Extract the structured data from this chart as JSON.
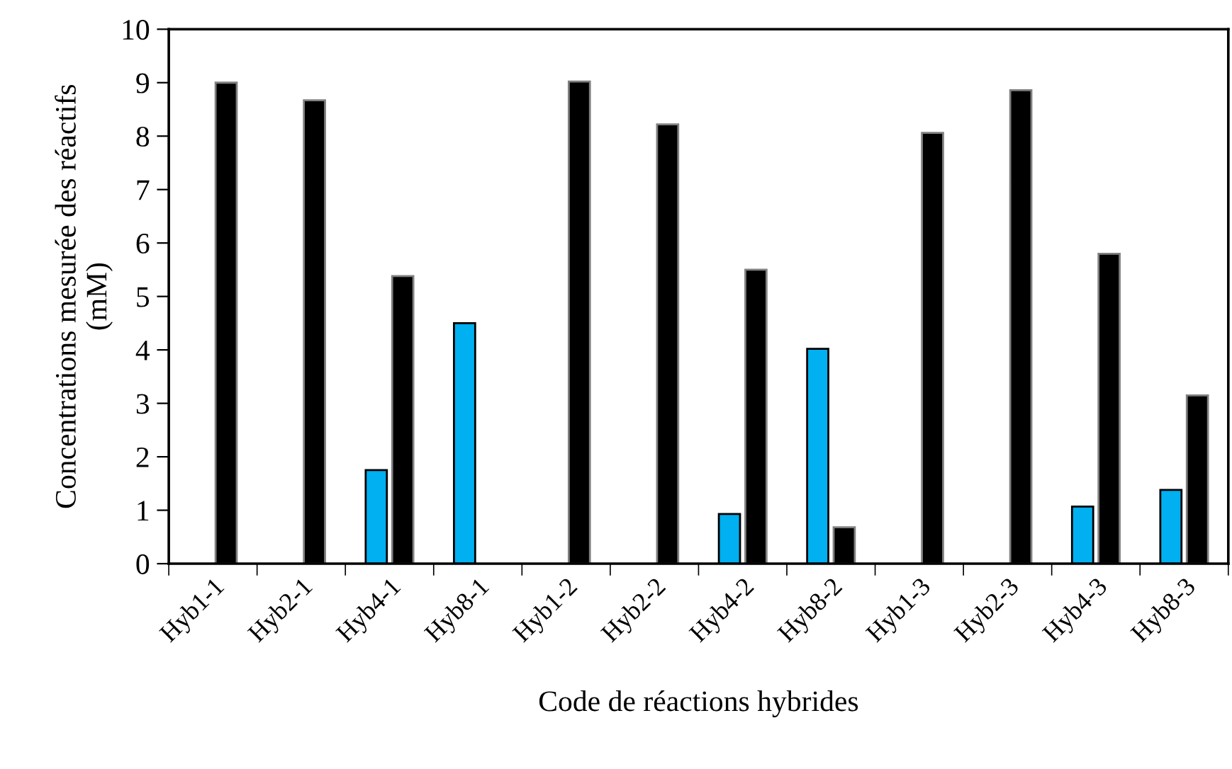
{
  "chart_data": {
    "type": "bar",
    "xlabel": "Code de réactions hybrides",
    "ylabel": "Concentrations mesurée des réactifs\n(mM)",
    "categories": [
      "Hyb1-1",
      "Hyb2-1",
      "Hyb4-1",
      "Hyb8-1",
      "Hyb1-2",
      "Hyb2-2",
      "Hyb4-2",
      "Hyb8-2",
      "Hyb1-3",
      "Hyb2-3",
      "Hyb4-3",
      "Hyb8-3"
    ],
    "series": [
      {
        "color": "#00b0f0",
        "values": [
          null,
          null,
          1.75,
          4.5,
          null,
          null,
          0.93,
          4.02,
          null,
          null,
          1.07,
          1.38
        ]
      },
      {
        "color": "#000000",
        "values": [
          9.0,
          8.67,
          5.38,
          null,
          9.02,
          8.22,
          5.5,
          0.68,
          8.06,
          8.86,
          5.8,
          3.15
        ]
      }
    ],
    "ylim": [
      0,
      10
    ],
    "yticks": [
      0,
      1,
      2,
      3,
      4,
      5,
      6,
      7,
      8,
      9,
      10
    ],
    "grid": false,
    "legend": false
  }
}
